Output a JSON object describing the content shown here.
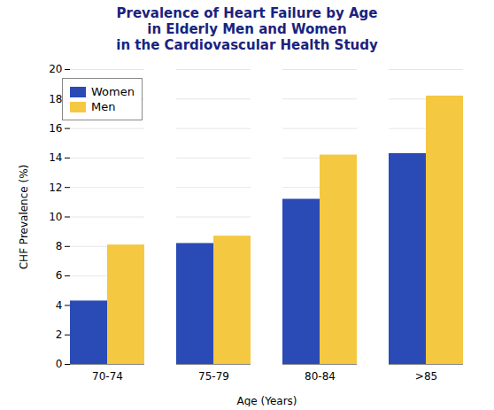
{
  "chart_data": {
    "type": "bar",
    "title": "Prevalence of Heart Failure by Age\nin Elderly Men and Women\nin the Cardiovascular Health Study",
    "title_color": "#1a237e",
    "xlabel": "Age (Years)",
    "ylabel": "CHF Prevalence (%)",
    "categories": [
      "70-74",
      "75-79",
      "80-84",
      ">85"
    ],
    "series": [
      {
        "name": "Women",
        "color": "#2a4ab5",
        "values": [
          4.3,
          8.2,
          11.2,
          14.3
        ]
      },
      {
        "name": "Men",
        "color": "#F5C842",
        "values": [
          8.1,
          8.7,
          14.2,
          18.2
        ]
      }
    ],
    "ylim": [
      0,
      20
    ],
    "yticks": [
      0,
      2,
      4,
      6,
      8,
      10,
      12,
      14,
      16,
      18,
      20
    ],
    "grid": true,
    "legend": "upper left"
  }
}
